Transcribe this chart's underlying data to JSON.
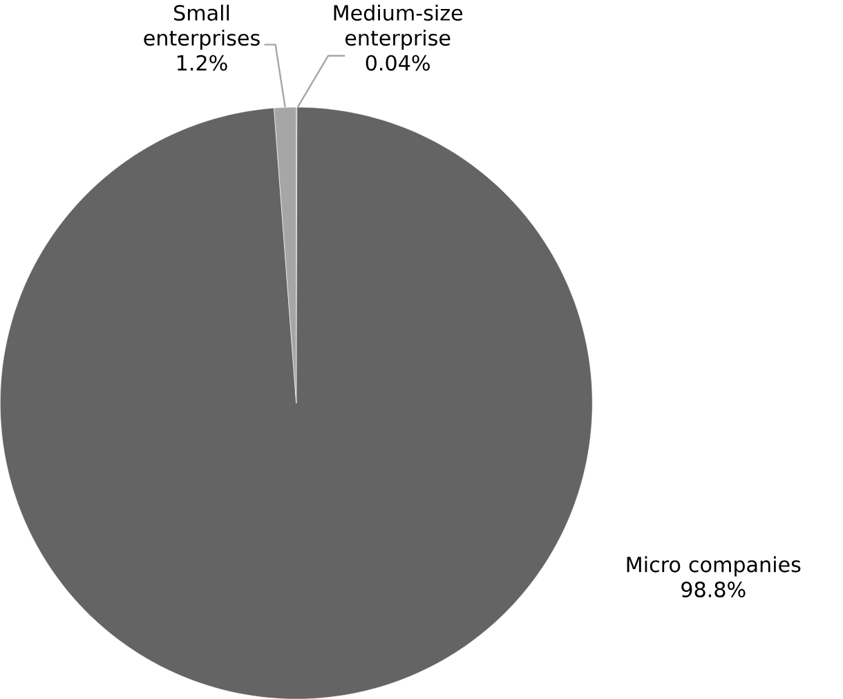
{
  "chart_data": {
    "type": "pie",
    "categories": [
      "Medium-size enterprise",
      "Micro companies",
      "Small enterprises"
    ],
    "values": [
      0.04,
      98.8,
      1.2
    ],
    "colors": [
      "#404040",
      "#646464",
      "#a6a6a6"
    ],
    "value_labels": [
      "0.04%",
      "98.8%",
      "1.2%"
    ]
  }
}
